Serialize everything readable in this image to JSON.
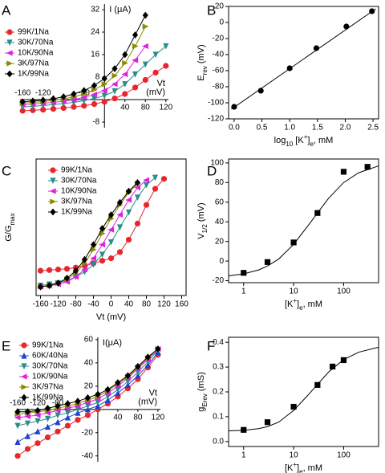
{
  "chart_data": [
    {
      "label": "A",
      "type": "line",
      "axes": "cross",
      "legend": "upper left",
      "ylabel": [
        "I (μA)"
      ],
      "xlabel": [
        "Vt",
        "(mV)"
      ],
      "xlim": [
        -165,
        125
      ],
      "ylim": [
        -10,
        34
      ],
      "xticks": [
        -160,
        -120,
        -40,
        40,
        80,
        120
      ],
      "yticks": [
        -8,
        8,
        16,
        24,
        32
      ],
      "x": [
        -160,
        -140,
        -120,
        -100,
        -80,
        -60,
        -40,
        -20,
        0,
        20,
        40,
        60,
        80,
        100,
        120
      ],
      "series": [
        {
          "name": "99K/1Na",
          "color": "#e8262b",
          "marker": "circle",
          "values": [
            -4,
            -3.8,
            -3.6,
            -3.3,
            -3,
            -2.6,
            -2.2,
            -1.6,
            -0.8,
            0.4,
            2,
            4.3,
            7,
            9.6,
            12
          ]
        },
        {
          "name": "30K/70Na",
          "color": "#2a8c8c",
          "marker": "tri-down",
          "values": [
            -2.6,
            -2.4,
            -2.1,
            -1.8,
            -1.4,
            -1,
            -0.4,
            0.4,
            1.4,
            3,
            5.5,
            9,
            12.5,
            16,
            19
          ]
        },
        {
          "name": "10K/90Na",
          "color": "#e020e0",
          "marker": "tri-left",
          "values": [
            -1.8,
            -1.6,
            -1.3,
            -1,
            -0.6,
            0,
            0.8,
            1.8,
            3.2,
            5.5,
            9,
            14,
            19,
            null,
            null
          ]
        },
        {
          "name": "3K/97Na",
          "color": "#8b8b00",
          "marker": "tri-right",
          "values": [
            -1.2,
            -1,
            -0.7,
            -0.3,
            0.2,
            1,
            2,
            3.5,
            5.5,
            8.5,
            13,
            19,
            26,
            null,
            null
          ]
        },
        {
          "name": "1K/99Na",
          "color": "#000000",
          "marker": "diamond",
          "values": [
            -0.8,
            -0.5,
            -0.2,
            0.3,
            1,
            2,
            3.2,
            5,
            7.5,
            11,
            16,
            23,
            30,
            null,
            null
          ]
        }
      ]
    },
    {
      "label": "B",
      "type": "scatter",
      "axes": "box",
      "ylabel": [
        "E",
        "rev",
        " (mV)"
      ],
      "xlabel": [
        "log",
        "10",
        " [K",
        "+",
        "]",
        "e",
        ", mM"
      ],
      "xlim": [
        -0.1,
        2.6
      ],
      "ylim": [
        -120,
        20
      ],
      "xticks": [
        {
          "value": 0,
          "label": "0.0"
        },
        0.5,
        {
          "value": 1,
          "label": "1.0"
        },
        1.5,
        {
          "value": 2,
          "label": "2.0"
        },
        2.5
      ],
      "yticks": [
        -120,
        -100,
        -80,
        -60,
        -40,
        -20,
        0,
        20
      ],
      "color": "#000000",
      "marker": "circle",
      "x": [
        0,
        0.48,
        1,
        1.48,
        2.02,
        2.48
      ],
      "values": [
        -105,
        -85,
        -57,
        -32,
        -5,
        14
      ],
      "fit": {
        "x": [
          -0.05,
          2.55
        ],
        "values": [
          -108,
          17
        ]
      }
    },
    {
      "label": "C",
      "type": "line",
      "axes": "box",
      "legend": "upper left",
      "ylabel": [
        "G/G",
        "max"
      ],
      "xlabel": [
        "Vt (mV)"
      ],
      "xlim": [
        -170,
        170
      ],
      "ylim": [
        -0.05,
        1.05
      ],
      "xticks": [
        -160,
        -120,
        -80,
        -40,
        0,
        40,
        80,
        120,
        160
      ],
      "x": [
        -160,
        -140,
        -120,
        -100,
        -80,
        -60,
        -40,
        -20,
        0,
        20,
        40,
        60,
        80,
        100,
        120
      ],
      "series": [
        {
          "name": "99K/1Na",
          "color": "#e8262b",
          "marker": "circle",
          "values": [
            0.15,
            0.155,
            0.16,
            0.165,
            0.175,
            0.19,
            0.21,
            0.23,
            0.25,
            0.3,
            0.4,
            0.53,
            0.68,
            0.81,
            0.89
          ]
        },
        {
          "name": "30K/70Na",
          "color": "#2a8c8c",
          "marker": "tri-down",
          "values": [
            0.03,
            0.04,
            0.05,
            0.07,
            0.1,
            0.14,
            0.2,
            0.28,
            0.38,
            0.5,
            0.62,
            0.74,
            0.84,
            0.9,
            null
          ]
        },
        {
          "name": "10K/90Na",
          "color": "#e020e0",
          "marker": "tri-left",
          "values": [
            0.02,
            0.03,
            0.04,
            0.06,
            0.1,
            0.16,
            0.25,
            0.36,
            0.48,
            0.6,
            0.72,
            0.82,
            0.88,
            null,
            null
          ]
        },
        {
          "name": "3K/97Na",
          "color": "#8b8b00",
          "marker": "tri-right",
          "values": [
            0.02,
            0.03,
            0.05,
            0.08,
            0.13,
            0.21,
            0.32,
            0.45,
            0.57,
            0.68,
            0.78,
            0.85,
            null,
            null,
            null
          ]
        },
        {
          "name": "1K/99Na",
          "color": "#000000",
          "marker": "diamond",
          "values": [
            0.02,
            0.03,
            0.05,
            0.09,
            0.15,
            0.24,
            0.36,
            0.49,
            0.6,
            0.7,
            0.79,
            0.86,
            null,
            null,
            null
          ]
        }
      ]
    },
    {
      "label": "D",
      "type": "scatter",
      "axes": "box",
      "xscale": "log",
      "ylabel": [
        "V",
        "1/2",
        " (mV)"
      ],
      "xlabel": [
        "[K",
        "+",
        "]",
        "e",
        ", mM"
      ],
      "xlim": [
        0.5,
        500
      ],
      "ylim": [
        -22,
        104
      ],
      "xticks": [
        1,
        10,
        100
      ],
      "yticks": [
        -20,
        0,
        20,
        40,
        60,
        80,
        100
      ],
      "color": "#000000",
      "marker": "square",
      "x": [
        1,
        3,
        10,
        30,
        100,
        300
      ],
      "values": [
        -12,
        -1,
        19,
        49,
        91,
        96
      ],
      "fit": {
        "x": [
          0.5,
          1,
          2,
          3,
          5,
          10,
          20,
          30,
          50,
          100,
          200,
          500
        ],
        "values": [
          -15,
          -13,
          -9,
          -5,
          2,
          17,
          37,
          49,
          64,
          80,
          90,
          97
        ]
      }
    },
    {
      "label": "E",
      "type": "line",
      "axes": "cross",
      "legend": "upper left",
      "ylabel": [
        "I(μA)"
      ],
      "xlabel": [
        "Vt",
        "(mV)"
      ],
      "xlim": [
        -160,
        125
      ],
      "ylim": [
        -45,
        62
      ],
      "xticks": [
        -160,
        -120,
        -80,
        40,
        80,
        120
      ],
      "yticks": [
        -40,
        -20,
        20,
        40,
        60
      ],
      "x": [
        -160,
        -140,
        -120,
        -100,
        -80,
        -60,
        -40,
        -20,
        0,
        20,
        40,
        60,
        80,
        100,
        120
      ],
      "series": [
        {
          "name": "99K/1Na",
          "color": "#e8262b",
          "marker": "circle",
          "values": [
            -40,
            -34,
            -29,
            -24,
            -19,
            -14,
            -9,
            -5,
            0,
            5,
            11,
            18,
            26,
            36,
            47
          ]
        },
        {
          "name": "60K/40Na",
          "color": "#1f3fd1",
          "marker": "tri-up",
          "values": [
            -28,
            -23,
            -19,
            -15,
            -11,
            -7,
            -3,
            0,
            3,
            8,
            14,
            21,
            29,
            38,
            49
          ]
        },
        {
          "name": "30K/70Na",
          "color": "#2a8c8c",
          "marker": "tri-down",
          "values": [
            -14,
            -12,
            -10,
            -8,
            -5,
            -3,
            0,
            3,
            6,
            11,
            17,
            24,
            32,
            41,
            51
          ]
        },
        {
          "name": "10K/90Na",
          "color": "#e020e0",
          "marker": "tri-left",
          "values": [
            -7,
            -6,
            -5,
            -3,
            -1,
            1,
            3,
            6,
            9,
            14,
            20,
            27,
            35,
            43,
            52
          ]
        },
        {
          "name": "3K/97Na",
          "color": "#8b8b00",
          "marker": "tri-right",
          "values": [
            -4,
            -3,
            -2,
            -1,
            1,
            3,
            5,
            8,
            11,
            16,
            22,
            28,
            36,
            44,
            52
          ]
        },
        {
          "name": "1K/99Na",
          "color": "#000000",
          "marker": "diamond",
          "values": [
            -2,
            -2,
            -1,
            1,
            3,
            5,
            7,
            10,
            13,
            17,
            23,
            29,
            37,
            45,
            52
          ]
        }
      ]
    },
    {
      "label": "F",
      "type": "scatter",
      "axes": "box",
      "xscale": "log",
      "ylabel": [
        "g",
        "Erev",
        " (mS)"
      ],
      "xlabel": [
        "[K",
        "+",
        "]",
        "e",
        ", mM"
      ],
      "xlim": [
        0.5,
        500
      ],
      "ylim": [
        -0.02,
        0.42
      ],
      "xticks": [
        1,
        10,
        100
      ],
      "yticks": [
        {
          "value": 0,
          "label": "0.0"
        },
        0.1,
        0.2,
        0.3,
        0.4
      ],
      "color": "#000000",
      "marker": "square",
      "x": [
        1,
        3,
        10,
        30,
        60,
        100
      ],
      "values": [
        0.047,
        0.078,
        0.14,
        0.228,
        0.302,
        0.328
      ],
      "fit": {
        "x": [
          0.5,
          1,
          2,
          3,
          5,
          10,
          20,
          30,
          50,
          100,
          200,
          500
        ],
        "values": [
          0.043,
          0.045,
          0.052,
          0.06,
          0.078,
          0.125,
          0.19,
          0.23,
          0.28,
          0.33,
          0.36,
          0.38
        ]
      }
    }
  ]
}
